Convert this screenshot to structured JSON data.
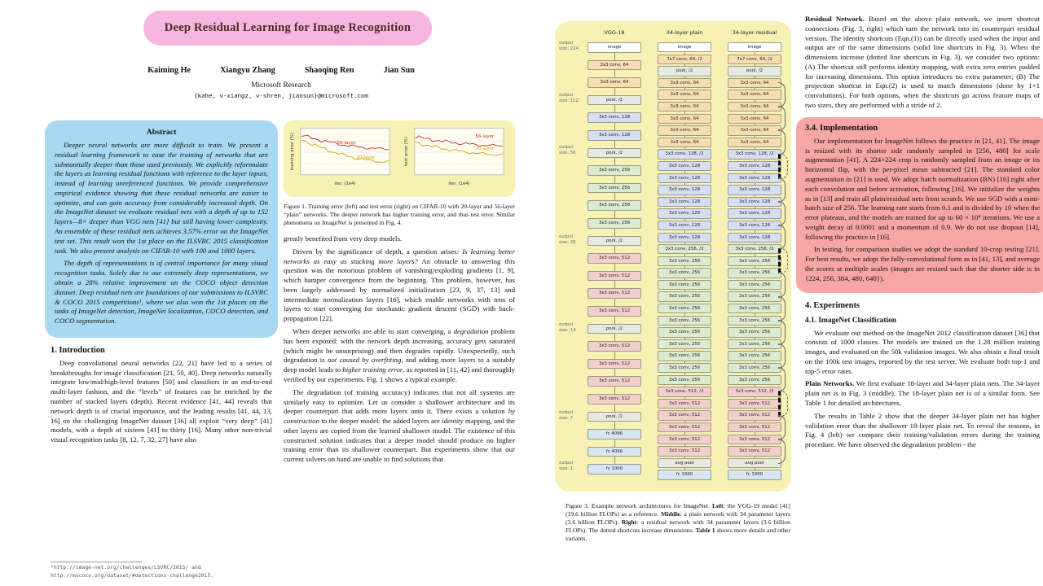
{
  "colors": {
    "title_highlight": "#f7b6df",
    "abstract_highlight": "#a9d8f2",
    "figure_highlight": "#f8f1b4",
    "implementation_highlight": "#f7a6a6",
    "curve_56_layer": "#cc2a1e",
    "curve_20_layer": "#c8a400",
    "net": {
      "img": "#ffffff",
      "c64": "#f7ddb2",
      "c128": "#d7def2",
      "c256": "#dcead0",
      "c512": "#f3cfcc",
      "pool": "#e9e9e3",
      "fc": "#d8e6f3"
    }
  },
  "page1": {
    "title": "Deep Residual Learning for Image Recognition",
    "authors": [
      "Kaiming He",
      "Xiangyu Zhang",
      "Shaoqing Ren",
      "Jian Sun"
    ],
    "affiliation": "Microsoft Research",
    "emails": "{kahe, v-xiangz, v-shren, jiansun}@microsoft.com",
    "abstract": {
      "heading": "Abstract",
      "paragraphs": [
        "Deeper neural networks are more difficult to train. We present a residual learning framework to ease the training of networks that are substantially deeper than those used previously. We explicitly reformulate the layers as learning residual functions with reference to the layer inputs, instead of learning unreferenced functions. We provide comprehensive empirical evidence showing that these residual networks are easier to optimize, and can gain accuracy from considerably increased depth. On the ImageNet dataset we evaluate residual nets with a depth of up to 152 layers—8× deeper than VGG nets [41] but still having lower complexity. An ensemble of these residual nets achieves 3.57% error on the ImageNet test set. This result won the 1st place on the ILSVRC 2015 classification task. We also present analysis on CIFAR-10 with 100 and 1000 layers.",
        "The depth of representations is of central importance for many visual recognition tasks. Solely due to our extremely deep representations, we obtain a 28% relative improvement on the COCO object detection dataset. Deep residual nets are foundations of our submissions to ILSVRC & COCO 2015 competitions¹, where we also won the 1st places on the tasks of ImageNet detection, ImageNet localization, COCO detection, and COCO segmentation."
      ]
    },
    "introduction": {
      "heading": "1. Introduction",
      "paragraphs": [
        "Deep convolutional neural networks [22, 21] have led to a series of breakthroughs for image classification [21, 50, 40]. Deep networks naturally integrate low/mid/high-level features [50] and classifiers in an end-to-end multi-layer fashion, and the “levels” of features can be enriched by the number of stacked layers (depth). Recent evidence [41, 44] reveals that network depth is of crucial importance, and the leading results [41, 44, 13, 16] on the challenging ImageNet dataset [36] all exploit “very deep” [41] models, with a depth of sixteen [41] to thirty [16]. Many other non-trivial visual recognition tasks [8, 12, 7, 32, 27] have also"
      ]
    },
    "footnote": "¹http://image-net.org/challenges/LSVRC/2015/ and http://mscoco.org/dataset/#detections-challenge2015.",
    "figure1": {
      "plots": [
        {
          "ylabel": "training error (%)",
          "xlabel": "iter. (1e4)",
          "labels": [
            "56-layer",
            "20-layer"
          ]
        },
        {
          "ylabel": "test error (%)",
          "xlabel": "iter. (1e4)",
          "labels": [
            "56-layer",
            "20-layer"
          ]
        }
      ],
      "caption": "Figure 1. Training error (left) and test error (right) on CIFAR-10 with 20-layer and 56-layer “plain” networks. The deeper network has higher training error, and thus test error. Similar phenomena on ImageNet is presented in Fig. 4."
    },
    "column2_paragraphs": [
      {
        "t": "greatly benefited from very deep models.",
        "ni": true
      },
      "Driven by the significance of depth, a question arises: *Is learning better networks as easy as stacking more layers?* An obstacle to answering this question was the notorious problem of vanishing/exploding gradients [1, 9], which hamper convergence from the beginning. This problem, however, has been largely addressed by normalized initialization [23, 9, 37, 13] and intermediate normalization layers [16], which enable networks with tens of layers to start converging for stochastic gradient descent (SGD) with back-propagation [22].",
      "When deeper networks are able to start converging, a *degradation* problem has been exposed: with the network depth increasing, accuracy gets saturated (which might be unsurprising) and then degrades rapidly. Unexpectedly, such degradation is *not caused by overfitting*, and adding more layers to a suitably deep model leads to *higher training error*, as reported in [11, 42] and thoroughly verified by our experiments. Fig. 1 shows a typical example.",
      "The degradation (of training accuracy) indicates that not all systems are similarly easy to optimize. Let us consider a shallower architecture and its deeper counterpart that adds more layers onto it. There exists a solution *by construction* to the deeper model: the added layers are *identity* mapping, and the other layers are copied from the learned shallower model. The existence of this constructed solution indicates that a deeper model should produce no higher training error than its shallower counterpart. But experiments show that our current solvers on hand are unable to find solutions that"
    ]
  },
  "page2": {
    "figure3": {
      "output_size_prefix": "output size:",
      "output_sizes": [
        "224",
        "112",
        "56",
        "28",
        "14",
        "7",
        "1"
      ],
      "columns": [
        {
          "label": "VGG-19",
          "boxes": [
            {
              "l": "image",
              "t": "img"
            },
            {
              "l": "3x3 conv, 64",
              "t": "c64",
              "n": 2
            },
            {
              "l": "pool, /2",
              "t": "pool"
            },
            {
              "l": "3x3 conv, 128",
              "t": "c128",
              "n": 2
            },
            {
              "l": "pool, /2",
              "t": "pool"
            },
            {
              "l": "3x3 conv, 256",
              "t": "c256",
              "n": 4
            },
            {
              "l": "pool, /2",
              "t": "pool"
            },
            {
              "l": "3x3 conv, 512",
              "t": "c512",
              "n": 4
            },
            {
              "l": "pool, /2",
              "t": "pool"
            },
            {
              "l": "3x3 conv, 512",
              "t": "c512",
              "n": 4
            },
            {
              "l": "pool, /2",
              "t": "pool"
            },
            {
              "l": "fc 4096",
              "t": "fc",
              "n": 2
            },
            {
              "l": "fc 1000",
              "t": "fc"
            }
          ]
        },
        {
          "label": "34-layer plain",
          "boxes": [
            {
              "l": "image",
              "t": "img"
            },
            {
              "l": "7x7 conv, 64, /2",
              "t": "c64"
            },
            {
              "l": "pool, /2",
              "t": "pool"
            },
            {
              "l": "3x3 conv, 64",
              "t": "c64",
              "n": 6
            },
            {
              "l": "3x3 conv, 128, /2",
              "t": "c128"
            },
            {
              "l": "3x3 conv, 128",
              "t": "c128",
              "n": 7
            },
            {
              "l": "3x3 conv, 256, /2",
              "t": "c256"
            },
            {
              "l": "3x3 conv, 256",
              "t": "c256",
              "n": 11
            },
            {
              "l": "3x3 conv, 512, /2",
              "t": "c512"
            },
            {
              "l": "3x3 conv, 512",
              "t": "c512",
              "n": 5
            },
            {
              "l": "avg pool",
              "t": "pool"
            },
            {
              "l": "fc 1000",
              "t": "fc"
            }
          ]
        },
        {
          "label": "34-layer residual",
          "boxes": [
            {
              "l": "image",
              "t": "img"
            },
            {
              "l": "7x7 conv, 64, /2",
              "t": "c64"
            },
            {
              "l": "pool, /2",
              "t": "pool"
            },
            {
              "l": "3x3 conv, 64",
              "t": "c64",
              "n": 6
            },
            {
              "l": "3x3 conv, 128, /2",
              "t": "c128"
            },
            {
              "l": "3x3 conv, 128",
              "t": "c128",
              "n": 7
            },
            {
              "l": "3x3 conv, 256, /2",
              "t": "c256"
            },
            {
              "l": "3x3 conv, 256",
              "t": "c256",
              "n": 11
            },
            {
              "l": "3x3 conv, 512, /2",
              "t": "c512"
            },
            {
              "l": "3x3 conv, 512",
              "t": "c512",
              "n": 5
            },
            {
              "l": "avg pool",
              "t": "pool"
            },
            {
              "l": "fc 1000",
              "t": "fc"
            }
          ],
          "arcs": [
            {
              "i": 3
            },
            {
              "i": 5
            },
            {
              "i": 7
            },
            {
              "i": 9,
              "d": true
            },
            {
              "i": 11
            },
            {
              "i": 13
            },
            {
              "i": 15
            },
            {
              "i": 17,
              "d": true
            },
            {
              "i": 19
            },
            {
              "i": 21
            },
            {
              "i": 23
            },
            {
              "i": 25
            },
            {
              "i": 27
            },
            {
              "i": 29,
              "d": true
            },
            {
              "i": 31
            },
            {
              "i": 33
            }
          ]
        }
      ],
      "caption": "Figure 3. Example network architectures for ImageNet. **Left**: the VGG-19 model [41] (19.6 billion FLOPs) as a reference. **Middle**: a plain network with 34 parameter layers (3.6 billion FLOPs). **Right**: a residual network with 34 parameter layers (3.6 billion FLOPs). The dotted shortcuts increase dimensions. **Table 1** shows more details and other variants."
    },
    "right_column": {
      "paragraphs_top": [
        {
          "t": "**Residual Network.** Based on the above plain network, we insert shortcut connections (Fig. 3, right) which turn the network into its counterpart residual version. The identity shortcuts (Eqn.(1)) can be directly used when the input and output are of the same dimensions (solid line shortcuts in Fig. 3). When the dimensions increase (dotted line shortcuts in Fig. 3), we consider two options: (A) The shortcut still performs identity mapping, with extra zero entries padded for increasing dimensions. This option introduces no extra parameter; (B) The projection shortcut in Eqn.(2) is used to match dimensions (done by 1×1 convolutions). For both options, when the shortcuts go across feature maps of two sizes, they are performed with a stride of 2.",
          "ni": true
        }
      ],
      "implementation": {
        "heading": "3.4. Implementation",
        "paragraphs": [
          "Our implementation for ImageNet follows the practice in [21, 41]. The image is resized with its shorter side randomly sampled in [256, 480] for scale augmentation [41]. A 224×224 crop is randomly sampled from an image or its horizontal flip, with the per-pixel mean subtracted [21]. The standard color augmentation in [21] is used. We adopt batch normalization (BN) [16] right after each convolution and before activation, following [16]. We initialize the weights as in [13] and train all plain/residual nets from scratch. We use SGD with a mini-batch size of 256. The learning rate starts from 0.1 and is divided by 10 when the error plateaus, and the models are trained for up to 60 × 10⁴ iterations. We use a weight decay of 0.0001 and a momentum of 0.9. We do not use dropout [14], following the practice in [16].",
          "In testing, for comparison studies we adopt the standard 10-crop testing [21]. For best results, we adopt the fully-convolutional form as in [41, 13], and average the scores at multiple scales (images are resized such that the shorter side is in {224, 256, 384, 480, 640})."
        ]
      },
      "experiments_heading": "4. Experiments",
      "imagenet_heading": "4.1. ImageNet Classification",
      "paragraphs_bottom": [
        "We evaluate our method on the ImageNet 2012 classification dataset [36] that consists of 1000 classes. The models are trained on the 1.28 million training images, and evaluated on the 50k validation images. We also obtain a final result on the 100k test images, reported by the test server. We evaluate both top-1 and top-5 error rates.",
        {
          "t": "**Plain Networks.** We first evaluate 18-layer and 34-layer plain nets. The 34-layer plain net is in Fig. 3 (middle). The 18-layer plain net is of a similar form. See Table 1 for detailed architectures.",
          "ni": true
        },
        "The results in Table 2 show that the deeper 34-layer plain net has higher validation error than the shallower 18-layer plain net. To reveal the reasons, in Fig. 4 (left) we compare their training/validation errors during the training procedure. We have observed the degradation problem - the"
      ]
    }
  }
}
